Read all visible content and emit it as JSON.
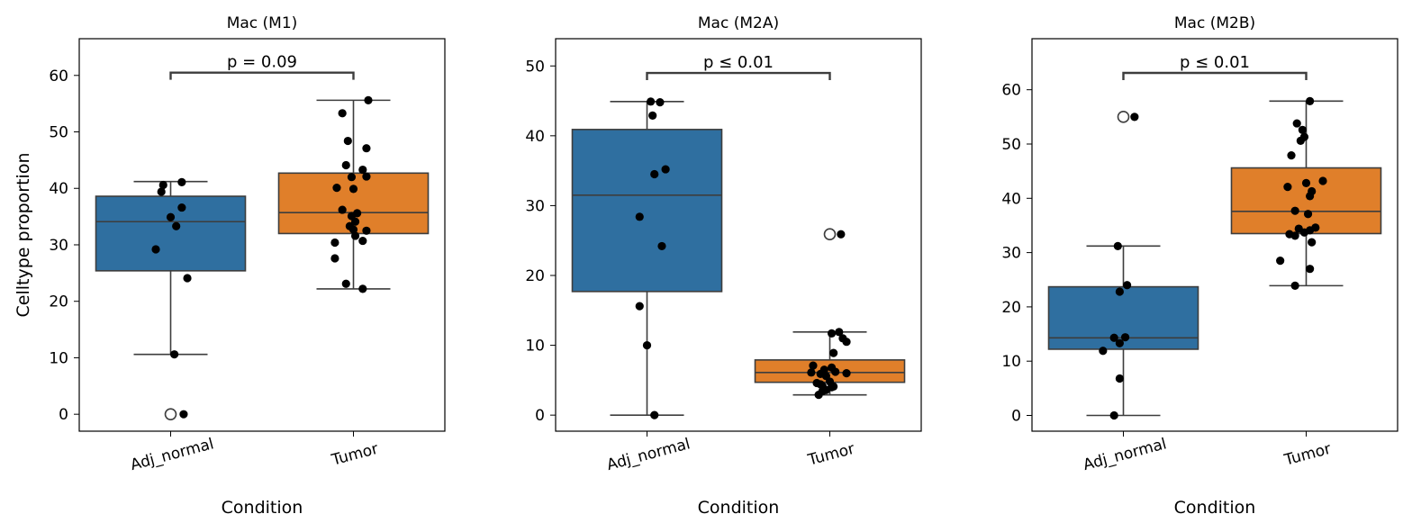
{
  "chart_data": [
    {
      "type": "box",
      "title": "Mac (M1)",
      "xlabel": "Condition",
      "ylabel": "Celltype proportion",
      "categories": [
        "Adj_normal",
        "Tumor"
      ],
      "colors": [
        "#2f6fa0",
        "#e07f2a"
      ],
      "ylim": [
        -3,
        66.5
      ],
      "yticks": [
        0,
        10,
        20,
        30,
        40,
        50,
        60
      ],
      "annotation": "p = 0.09",
      "bracket_y": 60.5,
      "boxes": [
        {
          "q1": 25.4,
          "median": 34.1,
          "q3": 38.6,
          "whisker_low": 10.6,
          "whisker_high": 41.2,
          "outliers": [
            0
          ]
        },
        {
          "q1": 32.0,
          "median": 35.7,
          "q3": 42.7,
          "whisker_low": 22.2,
          "whisker_high": 55.6,
          "outliers": []
        }
      ],
      "points": [
        [
          [
            -0.04,
            40.6
          ],
          [
            -0.05,
            39.4
          ],
          [
            0.06,
            41.1
          ],
          [
            0.06,
            36.6
          ],
          [
            0.0,
            34.9
          ],
          [
            0.03,
            33.3
          ],
          [
            -0.08,
            29.2
          ],
          [
            0.09,
            24.1
          ],
          [
            0.02,
            10.6
          ],
          [
            0.07,
            0.0
          ]
        ],
        [
          [
            -0.06,
            53.3
          ],
          [
            -0.03,
            48.4
          ],
          [
            0.08,
            55.6
          ],
          [
            0.07,
            47.1
          ],
          [
            -0.04,
            44.1
          ],
          [
            0.05,
            43.3
          ],
          [
            -0.01,
            42.0
          ],
          [
            0.07,
            42.1
          ],
          [
            -0.09,
            40.1
          ],
          [
            0.0,
            39.9
          ],
          [
            -0.06,
            36.2
          ],
          [
            0.02,
            35.6
          ],
          [
            -0.01,
            35.1
          ],
          [
            0.01,
            34.1
          ],
          [
            -0.02,
            33.3
          ],
          [
            0.0,
            32.7
          ],
          [
            0.07,
            32.5
          ],
          [
            0.01,
            31.6
          ],
          [
            -0.1,
            30.4
          ],
          [
            0.05,
            30.7
          ],
          [
            -0.1,
            27.6
          ],
          [
            -0.04,
            23.1
          ],
          [
            0.05,
            22.2
          ]
        ]
      ]
    },
    {
      "type": "box",
      "title": "Mac (M2A)",
      "xlabel": "Condition",
      "ylabel": "",
      "categories": [
        "Adj_normal",
        "Tumor"
      ],
      "colors": [
        "#2f6fa0",
        "#e07f2a"
      ],
      "ylim": [
        -2.3,
        53.9
      ],
      "yticks": [
        0,
        10,
        20,
        30,
        40,
        50
      ],
      "annotation": "p ≤ 0.01",
      "bracket_y": 49.0,
      "boxes": [
        {
          "q1": 17.7,
          "median": 31.5,
          "q3": 40.9,
          "whisker_low": 0.0,
          "whisker_high": 44.9,
          "outliers": []
        },
        {
          "q1": 4.7,
          "median": 6.1,
          "q3": 7.9,
          "whisker_low": 2.9,
          "whisker_high": 11.9,
          "outliers": [
            25.9
          ]
        }
      ],
      "points": [
        [
          [
            0.02,
            44.9
          ],
          [
            0.07,
            44.8
          ],
          [
            0.03,
            42.9
          ],
          [
            0.1,
            35.2
          ],
          [
            0.04,
            34.5
          ],
          [
            -0.04,
            28.4
          ],
          [
            0.08,
            24.2
          ],
          [
            -0.04,
            15.6
          ],
          [
            0.0,
            10.0
          ],
          [
            0.04,
            0.0
          ]
        ],
        [
          [
            0.06,
            25.9
          ],
          [
            0.05,
            11.9
          ],
          [
            0.01,
            11.7
          ],
          [
            0.07,
            11.0
          ],
          [
            0.09,
            10.5
          ],
          [
            0.02,
            8.9
          ],
          [
            -0.09,
            7.1
          ],
          [
            0.01,
            6.8
          ],
          [
            -0.03,
            6.5
          ],
          [
            0.03,
            6.2
          ],
          [
            -0.1,
            6.1
          ],
          [
            -0.05,
            5.9
          ],
          [
            0.09,
            6.0
          ],
          [
            -0.02,
            5.6
          ],
          [
            -0.07,
            4.6
          ],
          [
            0.0,
            4.8
          ],
          [
            -0.04,
            4.2
          ],
          [
            -0.05,
            4.4
          ],
          [
            0.01,
            4.0
          ],
          [
            0.02,
            4.1
          ],
          [
            -0.02,
            3.6
          ],
          [
            -0.04,
            3.4
          ],
          [
            -0.06,
            2.9
          ]
        ]
      ]
    },
    {
      "type": "box",
      "title": "Mac (M2B)",
      "xlabel": "Condition",
      "ylabel": "",
      "categories": [
        "Adj_normal",
        "Tumor"
      ],
      "colors": [
        "#2f6fa0",
        "#e07f2a"
      ],
      "ylim": [
        -2.9,
        69.4
      ],
      "yticks": [
        0,
        10,
        20,
        30,
        40,
        50,
        60
      ],
      "annotation": "p ≤ 0.01",
      "bracket_y": 63.1,
      "boxes": [
        {
          "q1": 12.2,
          "median": 14.3,
          "q3": 23.7,
          "whisker_low": 0.0,
          "whisker_high": 31.2,
          "outliers": [
            55.0
          ]
        },
        {
          "q1": 33.5,
          "median": 37.6,
          "q3": 45.6,
          "whisker_low": 23.9,
          "whisker_high": 57.9,
          "outliers": []
        }
      ],
      "points": [
        [
          [
            0.06,
            55.0
          ],
          [
            -0.03,
            31.2
          ],
          [
            0.02,
            24.0
          ],
          [
            -0.02,
            22.8
          ],
          [
            -0.05,
            14.3
          ],
          [
            0.01,
            14.4
          ],
          [
            -0.02,
            13.3
          ],
          [
            -0.11,
            11.9
          ],
          [
            -0.02,
            6.8
          ],
          [
            -0.05,
            0.0
          ]
        ],
        [
          [
            0.02,
            57.9
          ],
          [
            -0.05,
            53.8
          ],
          [
            -0.02,
            52.6
          ],
          [
            -0.01,
            51.3
          ],
          [
            -0.03,
            50.6
          ],
          [
            -0.08,
            47.9
          ],
          [
            0.09,
            43.2
          ],
          [
            0.0,
            42.8
          ],
          [
            -0.1,
            42.1
          ],
          [
            0.03,
            41.3
          ],
          [
            0.02,
            40.4
          ],
          [
            -0.06,
            37.7
          ],
          [
            0.01,
            37.1
          ],
          [
            0.05,
            34.6
          ],
          [
            0.02,
            34.1
          ],
          [
            -0.04,
            34.4
          ],
          [
            -0.01,
            33.7
          ],
          [
            -0.09,
            33.4
          ],
          [
            -0.06,
            33.1
          ],
          [
            0.03,
            31.9
          ],
          [
            -0.14,
            28.5
          ],
          [
            0.02,
            27.0
          ],
          [
            -0.06,
            23.9
          ]
        ]
      ]
    }
  ]
}
